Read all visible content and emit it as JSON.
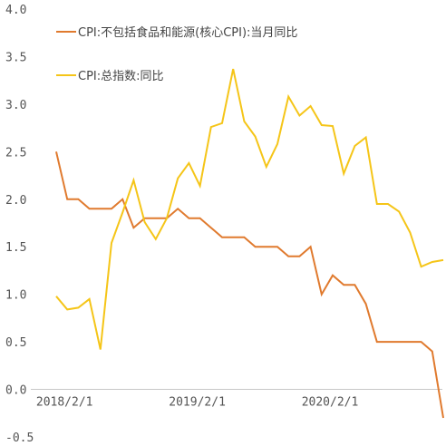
{
  "chart_data": {
    "type": "line",
    "x": [
      "2018-01",
      "2018-02",
      "2018-03",
      "2018-04",
      "2018-05",
      "2018-06",
      "2018-07",
      "2018-08",
      "2018-09",
      "2018-10",
      "2018-11",
      "2018-12",
      "2019-01",
      "2019-02",
      "2019-03",
      "2019-04",
      "2019-05",
      "2019-06",
      "2019-07",
      "2019-08",
      "2019-09",
      "2019-10",
      "2019-11",
      "2019-12",
      "2020-01",
      "2020-02",
      "2020-03",
      "2020-04",
      "2020-05",
      "2020-06",
      "2020-07",
      "2020-08",
      "2020-09",
      "2020-10",
      "2020-11",
      "2020-12"
    ],
    "x_tick_labels": [
      {
        "index": 1,
        "label": "2018/2/1"
      },
      {
        "index": 13,
        "label": "2019/2/1"
      },
      {
        "index": 25,
        "label": "2020/2/1"
      }
    ],
    "ylim": [
      -0.5,
      4.0
    ],
    "y_ticks": [
      -0.5,
      0.0,
      0.5,
      1.0,
      1.5,
      2.0,
      2.5,
      3.0,
      3.5,
      4.0
    ],
    "y_tick_labels": [
      "-0.5",
      "0.0",
      "0.5",
      "1.0",
      "1.5",
      "2.0",
      "2.5",
      "3.0",
      "3.5",
      "4.0"
    ],
    "grid": false,
    "legend_position": "top-left",
    "series": [
      {
        "name": "CPI:不包括食品和能源(核心CPI):当月同比",
        "color": "#e07a2e",
        "values": [
          2.5,
          2.0,
          2.0,
          1.9,
          1.9,
          1.9,
          2.0,
          1.7,
          1.8,
          1.8,
          1.8,
          1.9,
          1.8,
          1.8,
          1.7,
          1.6,
          1.6,
          1.6,
          1.5,
          1.5,
          1.5,
          1.4,
          1.4,
          1.5,
          1.0,
          1.2,
          1.1,
          1.1,
          0.9,
          0.5,
          0.5,
          0.5,
          0.5,
          0.5,
          0.4,
          -0.3
        ]
      },
      {
        "name": "CPI:总指数:同比",
        "color": "#f5c518",
        "values": [
          0.98,
          0.84,
          0.86,
          0.95,
          0.42,
          1.54,
          1.86,
          2.2,
          1.76,
          1.58,
          1.8,
          2.22,
          2.38,
          2.14,
          2.76,
          2.8,
          3.37,
          2.82,
          2.66,
          2.34,
          2.58,
          3.08,
          2.88,
          2.98,
          2.78,
          2.77,
          2.27,
          2.56,
          2.65,
          1.95,
          1.95,
          1.87,
          1.65,
          1.29,
          1.34,
          1.36
        ]
      }
    ]
  },
  "colors": {
    "axis_label": "#555555",
    "negative_label": "#e03030",
    "axis_line": "#c8c8c8"
  }
}
